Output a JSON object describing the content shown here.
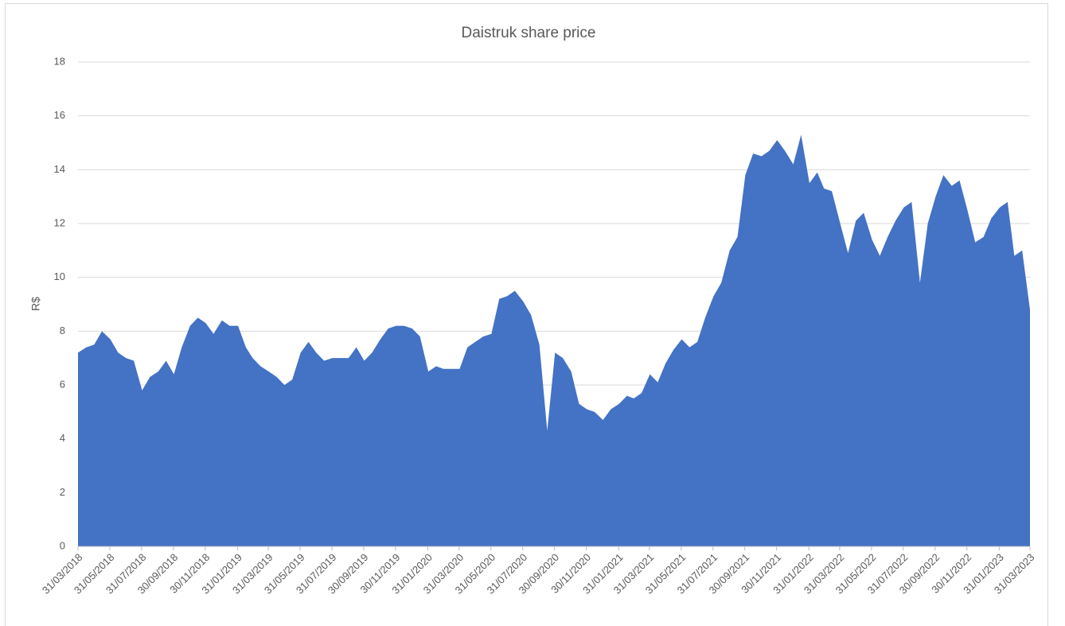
{
  "chart_data": {
    "type": "area",
    "title": "Daistruk share price",
    "ylabel": "R$",
    "x": [
      "31/03/2018",
      "16/04/2018",
      "01/05/2018",
      "16/05/2018",
      "01/06/2018",
      "16/06/2018",
      "01/07/2018",
      "16/07/2018",
      "01/08/2018",
      "16/08/2018",
      "01/09/2018",
      "16/09/2018",
      "01/10/2018",
      "16/10/2018",
      "01/11/2018",
      "16/11/2018",
      "01/12/2018",
      "16/12/2018",
      "01/01/2019",
      "16/01/2019",
      "01/02/2019",
      "16/02/2019",
      "01/03/2019",
      "16/03/2019",
      "01/04/2019",
      "16/04/2019",
      "01/05/2019",
      "16/05/2019",
      "01/06/2019",
      "16/06/2019",
      "01/07/2019",
      "16/07/2019",
      "01/08/2019",
      "16/08/2019",
      "01/09/2019",
      "16/09/2019",
      "01/10/2019",
      "16/10/2019",
      "01/11/2019",
      "16/11/2019",
      "01/12/2019",
      "16/12/2019",
      "01/01/2020",
      "16/01/2020",
      "01/02/2020",
      "16/02/2020",
      "01/03/2020",
      "16/03/2020",
      "01/04/2020",
      "16/04/2020",
      "01/05/2020",
      "16/05/2020",
      "01/06/2020",
      "16/06/2020",
      "01/07/2020",
      "16/07/2020",
      "01/08/2020",
      "16/08/2020",
      "01/09/2020",
      "16/09/2020",
      "01/10/2020",
      "16/10/2020",
      "01/11/2020",
      "16/11/2020",
      "01/12/2020",
      "16/12/2020",
      "01/01/2021",
      "16/01/2021",
      "01/02/2021",
      "16/02/2021",
      "01/03/2021",
      "16/03/2021",
      "01/04/2021",
      "16/04/2021",
      "01/05/2021",
      "16/05/2021",
      "01/06/2021",
      "16/06/2021",
      "01/07/2021",
      "16/07/2021",
      "01/08/2021",
      "16/08/2021",
      "01/09/2021",
      "16/09/2021",
      "01/10/2021",
      "16/10/2021",
      "01/11/2021",
      "16/11/2021",
      "01/12/2021",
      "16/12/2021",
      "01/01/2022",
      "16/01/2022",
      "01/02/2022",
      "16/02/2022",
      "01/03/2022",
      "16/03/2022",
      "01/04/2022",
      "16/04/2022",
      "01/05/2022",
      "16/05/2022",
      "01/06/2022",
      "16/06/2022",
      "01/07/2022",
      "16/07/2022",
      "01/08/2022",
      "16/08/2022",
      "01/09/2022",
      "16/09/2022",
      "01/10/2022",
      "16/10/2022",
      "01/11/2022",
      "16/11/2022",
      "01/12/2022",
      "16/12/2022",
      "01/01/2023",
      "16/01/2023",
      "01/02/2023",
      "16/02/2023",
      "01/03/2023",
      "16/03/2023",
      "31/03/2023"
    ],
    "series": [
      {
        "color": "#4472c4",
        "values": [
          7.2,
          7.4,
          7.5,
          8.0,
          7.7,
          7.2,
          7.0,
          6.9,
          5.8,
          6.3,
          6.5,
          6.9,
          6.4,
          7.4,
          8.2,
          8.5,
          8.3,
          7.9,
          8.4,
          8.2,
          8.2,
          7.4,
          7.0,
          6.7,
          6.5,
          6.3,
          6.0,
          6.2,
          7.2,
          7.6,
          7.2,
          6.9,
          7.0,
          7.0,
          7.0,
          7.4,
          6.9,
          7.2,
          7.7,
          8.1,
          8.2,
          8.2,
          8.1,
          7.8,
          6.5,
          6.7,
          6.6,
          6.6,
          6.6,
          7.4,
          7.6,
          7.8,
          7.9,
          9.2,
          9.3,
          9.5,
          9.1,
          8.6,
          7.5,
          4.3,
          7.2,
          7.0,
          6.5,
          5.3,
          5.1,
          5.0,
          4.7,
          5.1,
          5.3,
          5.6,
          5.5,
          5.7,
          6.4,
          6.1,
          6.8,
          7.3,
          7.7,
          7.4,
          7.6,
          8.5,
          9.3,
          9.8,
          11.0,
          11.5,
          13.8,
          14.6,
          14.5,
          14.7,
          15.1,
          14.7,
          14.2,
          15.3,
          13.5,
          13.9,
          13.3,
          13.2,
          12.0,
          10.9,
          12.1,
          12.4,
          11.4,
          10.8,
          11.5,
          12.1,
          12.6,
          12.8,
          9.8,
          12.0,
          13.0,
          13.8,
          13.4,
          13.6,
          12.5,
          11.3,
          11.5,
          12.2,
          12.6,
          12.8,
          10.8,
          11.0,
          8.8
        ]
      }
    ],
    "xlim": [
      "31/03/2018",
      "31/03/2023"
    ],
    "xticks": [
      "31/03/2018",
      "31/05/2018",
      "31/07/2018",
      "30/09/2018",
      "30/11/2018",
      "31/01/2019",
      "31/03/2019",
      "31/05/2019",
      "31/07/2019",
      "30/09/2019",
      "30/11/2019",
      "31/01/2020",
      "31/03/2020",
      "31/05/2020",
      "31/07/2020",
      "30/09/2020",
      "30/11/2020",
      "31/01/2021",
      "31/03/2021",
      "31/05/2021",
      "31/07/2021",
      "30/09/2021",
      "30/11/2021",
      "31/01/2022",
      "31/03/2022",
      "31/05/2022",
      "31/07/2022",
      "30/09/2022",
      "30/11/2022",
      "31/01/2023",
      "31/03/2023"
    ],
    "ylim": [
      0,
      18
    ],
    "yticks": [
      0,
      2,
      4,
      6,
      8,
      10,
      12,
      14,
      16,
      18
    ],
    "grid": true
  }
}
